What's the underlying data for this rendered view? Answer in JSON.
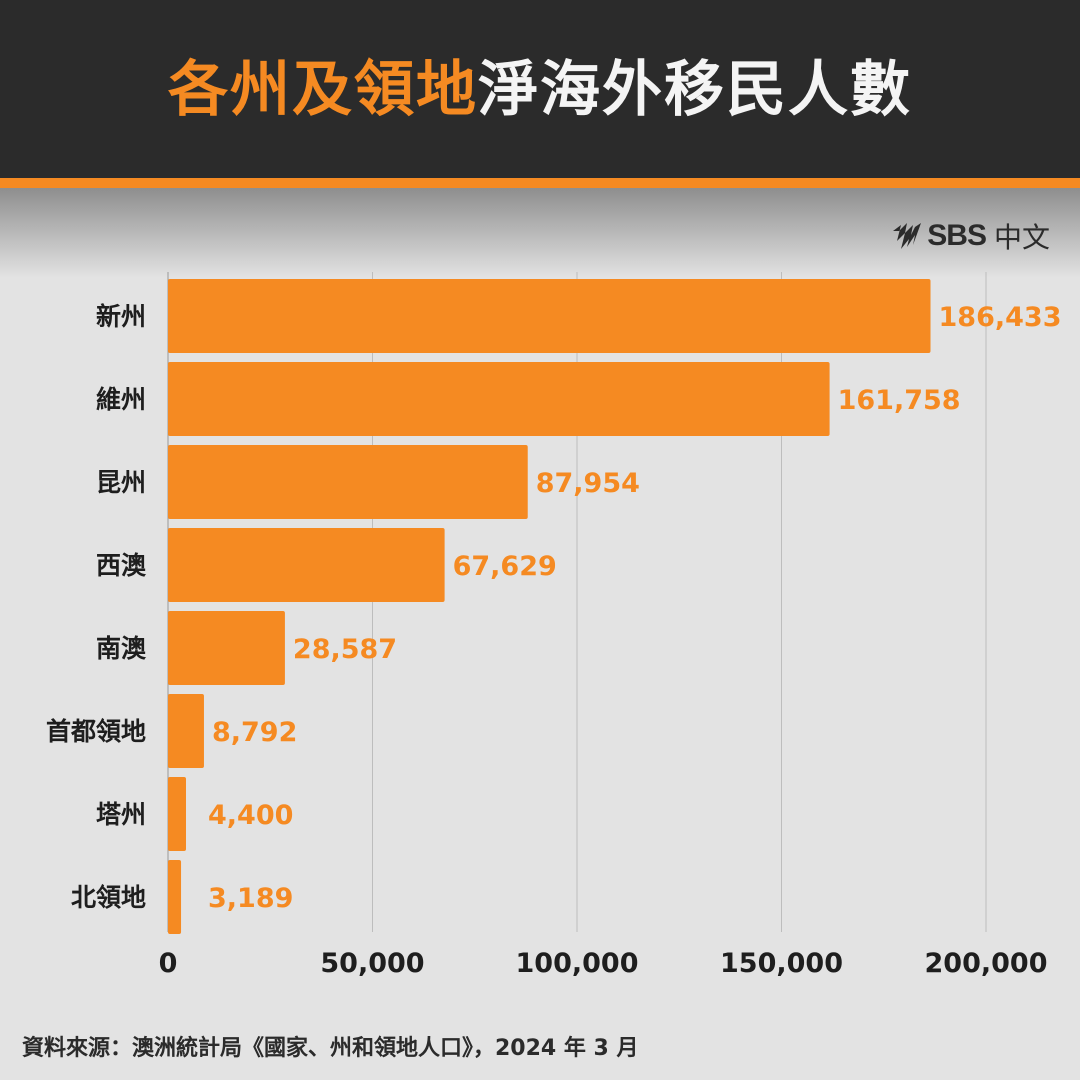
{
  "header": {
    "title_highlight": "各州及領地",
    "title_rest": "淨海外移民人數"
  },
  "logo": {
    "brand": "SBS",
    "lang": "中文"
  },
  "chart_data": {
    "type": "bar",
    "orientation": "horizontal",
    "title": "各州及領地淨海外移民人數",
    "categories": [
      "新州",
      "維州",
      "昆州",
      "西澳",
      "南澳",
      "首都領地",
      "塔州",
      "北領地"
    ],
    "values": [
      186433,
      161758,
      87954,
      67629,
      28587,
      8792,
      4400,
      3189
    ],
    "value_labels": [
      "186,433",
      "161,758",
      "87,954",
      "67,629",
      "28,587",
      "8,792",
      "4,400",
      "3,189"
    ],
    "xlim": [
      0,
      200000
    ],
    "xticks": [
      0,
      50000,
      100000,
      150000,
      200000
    ],
    "xtick_labels": [
      "0",
      "50,000",
      "100,000",
      "150,000",
      "200,000"
    ],
    "grid": true,
    "bar_color": "#f58a22"
  },
  "source": "資料來源：澳洲統計局《國家、州和領地人口》，2024 年 3 月"
}
